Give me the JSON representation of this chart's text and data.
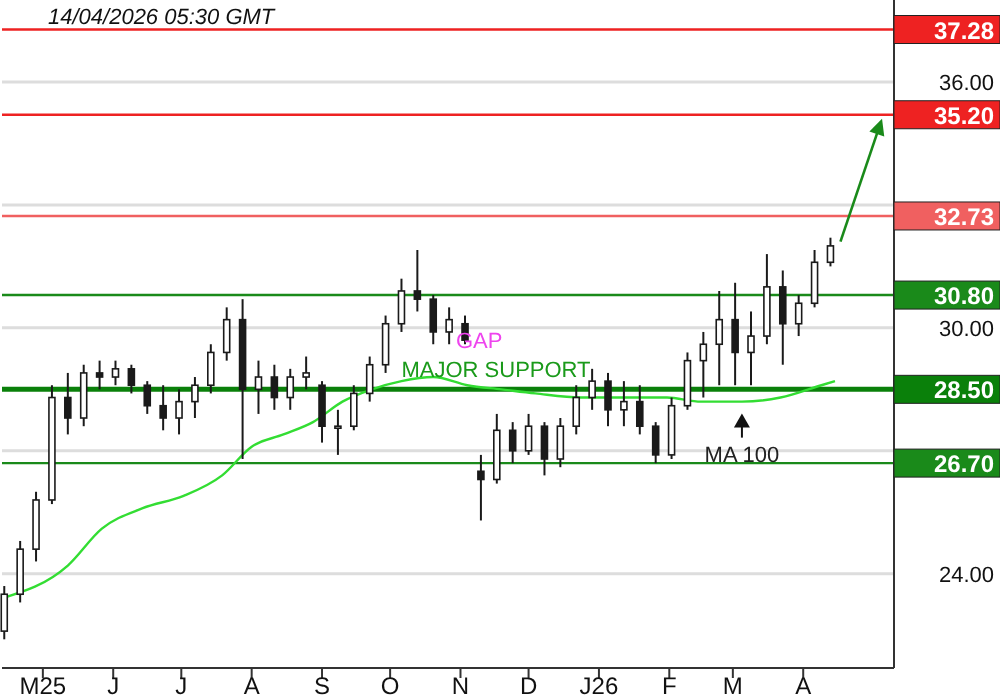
{
  "chart_data": {
    "type": "candlestick",
    "xlim": [
      "2025-04-13",
      "2026-05-11"
    ],
    "ylim": [
      21.7,
      38.0
    ],
    "yticks": [
      {
        "value": 24,
        "label": "24.00"
      },
      {
        "value": 27,
        "label": null
      },
      {
        "value": 30,
        "label": "30.00"
      },
      {
        "value": 33,
        "label": null
      },
      {
        "value": 36,
        "label": "36.00"
      }
    ],
    "xticks": [
      {
        "value": "2025-05-01",
        "label": "M25"
      },
      {
        "value": "2025-06-01",
        "label": "J"
      },
      {
        "value": "2025-07-01",
        "label": "J"
      },
      {
        "value": "2025-08-01",
        "label": "A"
      },
      {
        "value": "2025-09-01",
        "label": "S"
      },
      {
        "value": "2025-10-01",
        "label": "O"
      },
      {
        "value": "2025-11-01",
        "label": "N"
      },
      {
        "value": "2025-12-01",
        "label": "D"
      },
      {
        "value": "2026-01-01",
        "label": "J26"
      },
      {
        "value": "2026-02-01",
        "label": "F"
      },
      {
        "value": "2026-03-01",
        "label": "M"
      },
      {
        "value": "2026-04-01",
        "label": "A"
      }
    ],
    "grid": "y",
    "series": [
      {
        "type": "candlestick",
        "color": "#1a1a1a",
        "x": [
          "2025-04-14",
          "2025-04-21",
          "2025-04-28",
          "2025-05-05",
          "2025-05-12",
          "2025-05-19",
          "2025-05-26",
          "2025-06-02",
          "2025-06-09",
          "2025-06-16",
          "2025-06-23",
          "2025-06-30",
          "2025-07-07",
          "2025-07-14",
          "2025-07-21",
          "2025-07-28",
          "2025-08-04",
          "2025-08-11",
          "2025-08-18",
          "2025-08-25",
          "2025-09-01",
          "2025-09-08",
          "2025-09-15",
          "2025-09-22",
          "2025-09-29",
          "2025-10-06",
          "2025-10-13",
          "2025-10-20",
          "2025-10-27",
          "2025-11-03",
          "2025-11-10",
          "2025-11-17",
          "2025-11-24",
          "2025-12-01",
          "2025-12-08",
          "2025-12-15",
          "2025-12-22",
          "2025-12-29",
          "2026-01-05",
          "2026-01-12",
          "2026-01-19",
          "2026-01-26",
          "2026-02-02",
          "2026-02-09",
          "2026-02-16",
          "2026-02-23",
          "2026-03-02",
          "2026-03-09",
          "2026-03-16",
          "2026-03-23",
          "2026-03-30",
          "2026-04-06",
          "2026-04-13"
        ],
        "ohlc": [
          [
            22.6,
            23.7,
            22.4,
            23.5
          ],
          [
            23.5,
            24.8,
            23.3,
            24.6
          ],
          [
            24.6,
            26.0,
            24.3,
            25.8
          ],
          [
            25.8,
            28.6,
            25.7,
            28.3
          ],
          [
            28.3,
            28.9,
            27.4,
            27.8
          ],
          [
            27.8,
            29.1,
            27.6,
            28.9
          ],
          [
            28.9,
            29.2,
            28.5,
            28.8
          ],
          [
            28.8,
            29.2,
            28.6,
            29.0
          ],
          [
            29.0,
            29.1,
            28.4,
            28.6
          ],
          [
            28.6,
            28.7,
            27.9,
            28.1
          ],
          [
            28.1,
            28.6,
            27.5,
            27.8
          ],
          [
            27.8,
            28.5,
            27.4,
            28.2
          ],
          [
            28.2,
            28.8,
            27.8,
            28.6
          ],
          [
            28.6,
            29.6,
            28.4,
            29.4
          ],
          [
            29.4,
            30.5,
            29.2,
            30.2
          ],
          [
            30.2,
            30.7,
            26.8,
            28.5
          ],
          [
            28.5,
            29.2,
            27.9,
            28.8
          ],
          [
            28.8,
            29.1,
            28.0,
            28.3
          ],
          [
            28.3,
            29.0,
            28.0,
            28.8
          ],
          [
            28.8,
            29.3,
            28.5,
            28.9
          ],
          [
            28.6,
            28.7,
            27.2,
            27.6
          ],
          [
            27.6,
            28.0,
            26.9,
            27.6
          ],
          [
            27.6,
            28.6,
            27.5,
            28.4
          ],
          [
            28.4,
            29.3,
            28.2,
            29.1
          ],
          [
            29.1,
            30.3,
            28.9,
            30.1
          ],
          [
            30.1,
            31.2,
            29.9,
            30.9
          ],
          [
            30.9,
            31.9,
            30.4,
            30.7
          ],
          [
            30.7,
            30.8,
            29.6,
            29.9
          ],
          [
            29.9,
            30.5,
            29.6,
            30.2
          ],
          [
            30.1,
            30.3,
            29.6,
            29.7
          ],
          [
            26.5,
            26.9,
            25.3,
            26.3
          ],
          [
            26.3,
            27.9,
            26.2,
            27.5
          ],
          [
            27.5,
            27.7,
            26.7,
            27.0
          ],
          [
            27.0,
            27.9,
            26.9,
            27.6
          ],
          [
            27.6,
            27.7,
            26.4,
            26.8
          ],
          [
            26.8,
            27.8,
            26.6,
            27.6
          ],
          [
            27.6,
            28.6,
            27.4,
            28.3
          ],
          [
            28.3,
            29.0,
            28.0,
            28.7
          ],
          [
            28.7,
            28.9,
            27.6,
            28.0
          ],
          [
            28.0,
            28.7,
            27.6,
            28.2
          ],
          [
            28.2,
            28.6,
            27.4,
            27.6
          ],
          [
            27.6,
            27.7,
            26.7,
            26.9
          ],
          [
            26.9,
            28.3,
            26.8,
            28.1
          ],
          [
            28.1,
            29.4,
            28.0,
            29.2
          ],
          [
            29.2,
            29.9,
            28.3,
            29.6
          ],
          [
            29.6,
            30.9,
            28.6,
            30.2
          ],
          [
            30.2,
            31.1,
            28.6,
            29.4
          ],
          [
            29.4,
            30.4,
            28.6,
            29.8
          ],
          [
            29.8,
            31.8,
            29.6,
            31.0
          ],
          [
            31.0,
            31.4,
            29.1,
            30.1
          ],
          [
            30.1,
            30.8,
            29.8,
            30.6
          ],
          [
            30.6,
            31.9,
            30.5,
            31.6
          ],
          [
            31.6,
            32.2,
            31.5,
            32.0
          ]
        ]
      },
      {
        "type": "line",
        "color": "#33dd33",
        "x": [
          "2025-04-13",
          "2025-05-12",
          "2025-05-27",
          "2025-06-14",
          "2025-07-02",
          "2025-07-19",
          "2025-08-01",
          "2025-08-15",
          "2025-08-28",
          "2025-09-10",
          "2025-09-23",
          "2025-10-06",
          "2025-10-20",
          "2025-11-04",
          "2025-11-19",
          "2025-12-04",
          "2025-12-24",
          "2026-01-11",
          "2026-01-31",
          "2026-02-15",
          "2026-03-05",
          "2026-03-22",
          "2026-04-09",
          "2026-04-15"
        ],
        "values": [
          23.4,
          24.2,
          25.1,
          25.6,
          25.9,
          26.4,
          27.1,
          27.4,
          27.7,
          28.2,
          28.5,
          28.7,
          28.8,
          28.6,
          28.5,
          28.4,
          28.3,
          28.3,
          28.3,
          28.2,
          28.2,
          28.3,
          28.6,
          28.7
        ]
      }
    ],
    "ref_lines": [
      {
        "axis": "y",
        "value": 37.28,
        "label": "37.28",
        "color": "#ee2222"
      },
      {
        "axis": "y",
        "value": 35.2,
        "label": "35.20",
        "color": "#ee2222"
      },
      {
        "axis": "y",
        "value": 32.73,
        "label": "32.73",
        "color": "#f06060"
      },
      {
        "axis": "y",
        "value": 30.8,
        "label": "30.80",
        "color": "#1a8a1a"
      },
      {
        "axis": "y",
        "value": 28.5,
        "label": "28.50",
        "color": "#0a800a"
      },
      {
        "axis": "y",
        "value": 26.7,
        "label": "26.70",
        "color": "#1a8a1a"
      }
    ],
    "annotations": [
      "14/04/2026 05:30 GMT",
      "GAP",
      {
        "text": "MAJOR SUPPORT",
        "x": "2025-10-06",
        "y": 28.5
      },
      {
        "text": "MA 100",
        "x": "2026-03-05",
        "y": 28.2
      }
    ]
  }
}
